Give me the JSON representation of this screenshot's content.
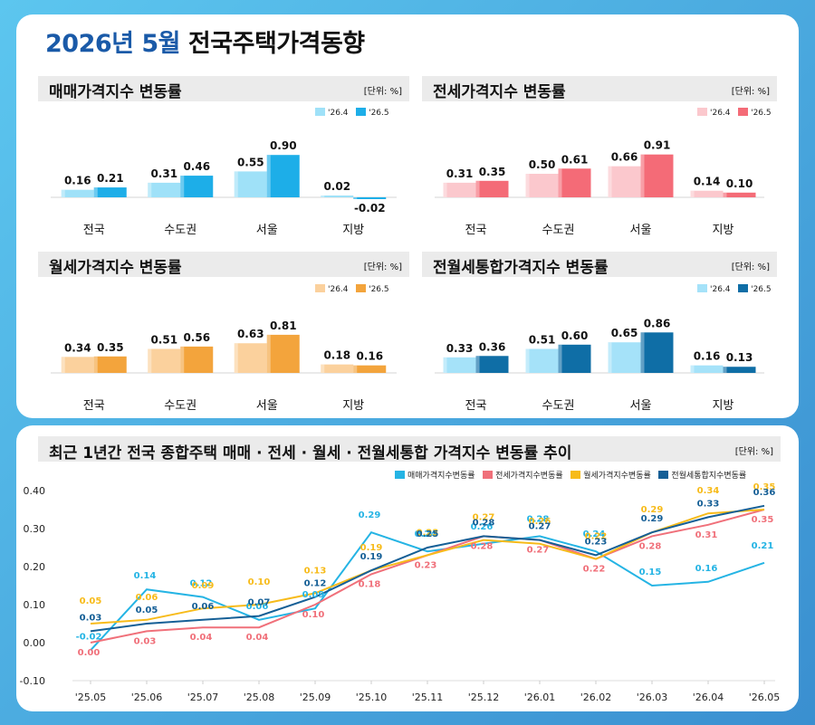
{
  "title_part1": "2026년 5월",
  "title_part2": "전국주택가격동향",
  "unit_label": "[단위: %]",
  "panels": [
    {
      "title": "매매가격지수 변동률",
      "legend": [
        "'26.4",
        "'26.5"
      ],
      "colors": [
        "#9fe1f8",
        "#1daee8"
      ]
    },
    {
      "title": "전세가격지수 변동률",
      "legend": [
        "'26.4",
        "'26.5"
      ],
      "colors": [
        "#fbc8cd",
        "#f46b77"
      ]
    },
    {
      "title": "월세가격지수 변동률",
      "legend": [
        "'26.4",
        "'26.5"
      ],
      "colors": [
        "#fbd19d",
        "#f3a43c"
      ]
    },
    {
      "title": "전월세통합가격지수 변동률",
      "legend": [
        "'26.4",
        "'26.5"
      ],
      "colors": [
        "#a5e2f9",
        "#0f6ea6"
      ]
    }
  ],
  "trend_title": "최근 1년간 전국 종합주택 매매 · 전세 · 월세 · 전월세통합 가격지수 변동률 추이",
  "trend_colors": [
    "#25b4e4",
    "#f0707a",
    "#f7bb1a",
    "#155f96"
  ],
  "chart_data": [
    {
      "type": "bar",
      "title": "매매가격지수 변동률",
      "categories": [
        "전국",
        "수도권",
        "서울",
        "지방"
      ],
      "series": [
        {
          "name": "'26.4",
          "values": [
            0.16,
            0.31,
            0.55,
            0.02
          ]
        },
        {
          "name": "'26.5",
          "values": [
            0.21,
            0.46,
            0.9,
            -0.02
          ]
        }
      ]
    },
    {
      "type": "bar",
      "title": "전세가격지수 변동률",
      "categories": [
        "전국",
        "수도권",
        "서울",
        "지방"
      ],
      "series": [
        {
          "name": "'26.4",
          "values": [
            0.31,
            0.5,
            0.66,
            0.14
          ]
        },
        {
          "name": "'26.5",
          "values": [
            0.35,
            0.61,
            0.91,
            0.1
          ]
        }
      ]
    },
    {
      "type": "bar",
      "title": "월세가격지수 변동률",
      "categories": [
        "전국",
        "수도권",
        "서울",
        "지방"
      ],
      "series": [
        {
          "name": "'26.4",
          "values": [
            0.34,
            0.51,
            0.63,
            0.18
          ]
        },
        {
          "name": "'26.5",
          "values": [
            0.35,
            0.56,
            0.81,
            0.16
          ]
        }
      ]
    },
    {
      "type": "bar",
      "title": "전월세통합가격지수 변동률",
      "categories": [
        "전국",
        "수도권",
        "서울",
        "지방"
      ],
      "series": [
        {
          "name": "'26.4",
          "values": [
            0.33,
            0.51,
            0.65,
            0.16
          ]
        },
        {
          "name": "'26.5",
          "values": [
            0.36,
            0.6,
            0.86,
            0.13
          ]
        }
      ]
    },
    {
      "type": "line",
      "title": "최근 1년간 전국 종합주택 매매 · 전세 · 월세 · 전월세통합 가격지수 변동률 추이",
      "x": [
        "'25.05",
        "'25.06",
        "'25.07",
        "'25.08",
        "'25.09",
        "'25.10",
        "'25.11",
        "'25.12",
        "'26.01",
        "'26.02",
        "'26.03",
        "'26.04",
        "'26.05"
      ],
      "ylim": [
        -0.1,
        0.4
      ],
      "yticks": [
        "0.40",
        "0.30",
        "0.20",
        "0.10",
        "0.00",
        "-0.10"
      ],
      "series": [
        {
          "name": "매매가격지수변동률",
          "values": [
            -0.02,
            0.14,
            0.12,
            0.06,
            0.09,
            0.29,
            0.24,
            0.26,
            0.28,
            0.24,
            0.15,
            0.16,
            0.21
          ]
        },
        {
          "name": "전세가격지수변동률",
          "values": [
            0.0,
            0.03,
            0.04,
            0.04,
            0.1,
            0.18,
            0.23,
            0.28,
            0.27,
            0.22,
            0.28,
            0.31,
            0.35
          ]
        },
        {
          "name": "월세가격지수변동률",
          "values": [
            0.05,
            0.06,
            0.09,
            0.1,
            0.13,
            0.19,
            0.23,
            0.27,
            0.26,
            0.22,
            0.29,
            0.34,
            0.35
          ]
        },
        {
          "name": "전월세통합지수변동률",
          "values": [
            0.03,
            0.05,
            0.06,
            0.07,
            0.12,
            0.19,
            0.25,
            0.28,
            0.27,
            0.23,
            0.29,
            0.33,
            0.36
          ]
        }
      ]
    }
  ]
}
